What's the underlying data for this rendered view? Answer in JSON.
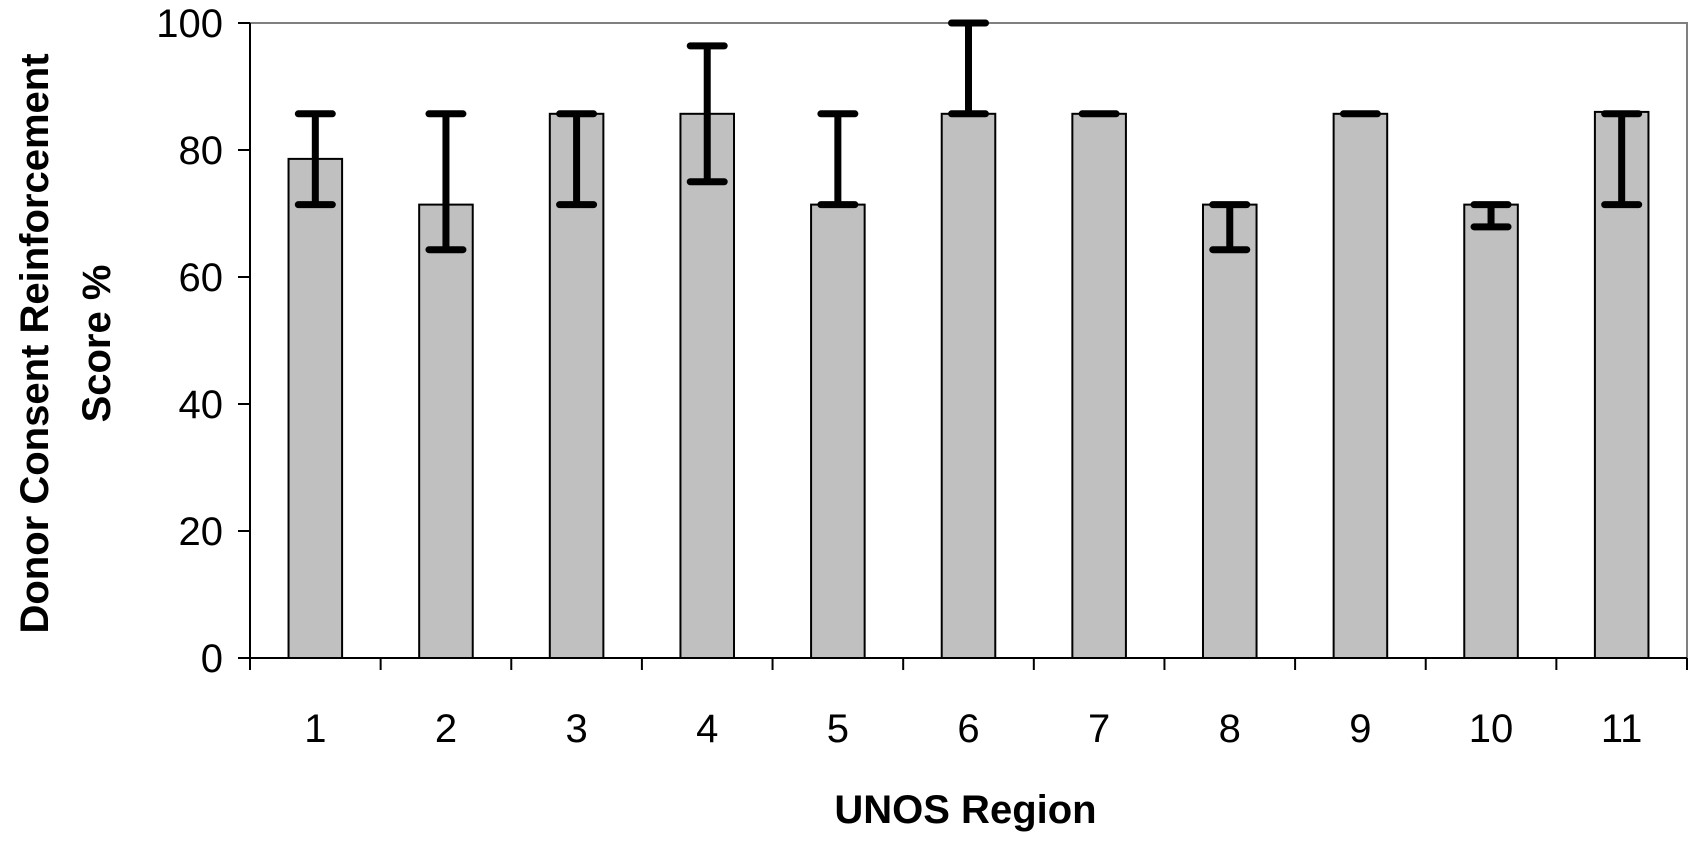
{
  "chart_data": {
    "type": "bar",
    "title": "",
    "xlabel": "UNOS Region",
    "ylabel_lines": [
      "Donor Consent Reinforcement",
      "Score %"
    ],
    "categories": [
      "1",
      "2",
      "3",
      "4",
      "5",
      "6",
      "7",
      "8",
      "9",
      "10",
      "11"
    ],
    "values": [
      78.6,
      71.4,
      85.7,
      85.7,
      71.4,
      85.7,
      85.7,
      71.4,
      85.7,
      71.4,
      86.0
    ],
    "error_low": [
      71.4,
      64.3,
      71.4,
      75.0,
      71.4,
      85.7,
      85.7,
      64.3,
      85.7,
      67.9,
      71.4
    ],
    "error_high": [
      85.7,
      85.7,
      85.7,
      96.4,
      85.7,
      100.0,
      85.7,
      71.4,
      85.7,
      71.4,
      85.7
    ],
    "ylim": [
      0,
      100
    ],
    "yticks": [
      "0",
      "20",
      "40",
      "60",
      "80",
      "100"
    ],
    "grid": false,
    "legend": "none",
    "colors": {
      "bar_fill": "#c0c0c0",
      "bar_stroke": "#000000",
      "error_bar": "#000000",
      "axis": "#000000",
      "frame": "#808080"
    }
  }
}
